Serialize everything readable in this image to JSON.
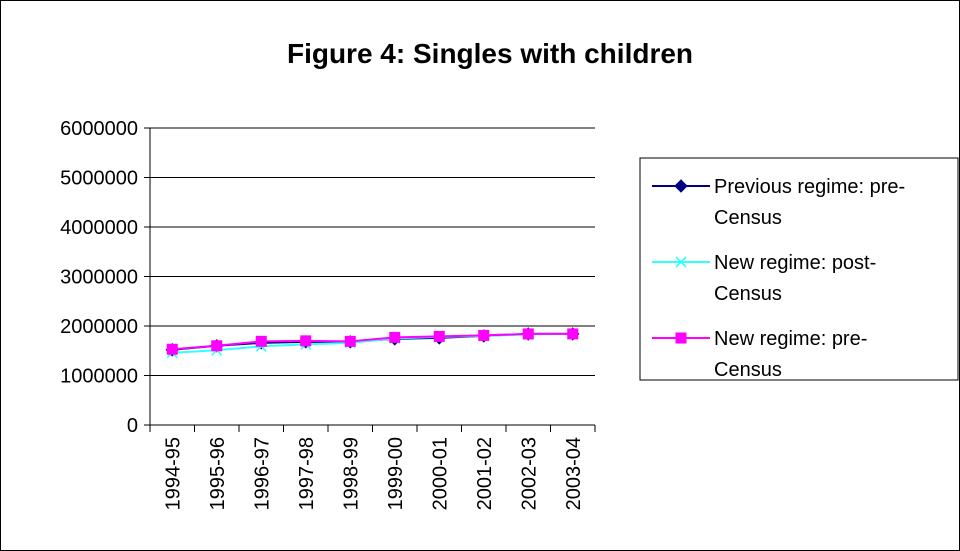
{
  "chart_data": {
    "type": "line",
    "title": "Figure 4: Singles with children",
    "xlabel": "",
    "ylabel": "",
    "categories": [
      "1994-95",
      "1995-96",
      "1996-97",
      "1997-98",
      "1998-99",
      "1999-00",
      "2000-01",
      "2001-02",
      "2002-03",
      "2003-04"
    ],
    "ylim": [
      0,
      6000000
    ],
    "yticks": [
      "0",
      "1000000",
      "2000000",
      "3000000",
      "4000000",
      "5000000",
      "6000000"
    ],
    "grid": true,
    "legend_position": "right",
    "series": [
      {
        "name_lines": [
          "Previous regime: pre-",
          "Census"
        ],
        "color": "#000080",
        "marker": "diamond",
        "values": [
          1520000,
          1600000,
          1660000,
          1680000,
          1680000,
          1740000,
          1760000,
          1800000,
          1840000,
          1840000
        ]
      },
      {
        "name_lines": [
          "New regime: post-",
          "Census"
        ],
        "color": "#33ffff",
        "marker": "x",
        "values": [
          1460000,
          1510000,
          1590000,
          1630000,
          1660000,
          1750000,
          1780000,
          1800000,
          1830000,
          1840000
        ]
      },
      {
        "name_lines": [
          "New regime: pre-",
          "Census"
        ],
        "color": "#ff00ff",
        "marker": "square",
        "values": [
          1530000,
          1600000,
          1690000,
          1700000,
          1690000,
          1770000,
          1790000,
          1810000,
          1840000,
          1840000
        ]
      }
    ]
  }
}
